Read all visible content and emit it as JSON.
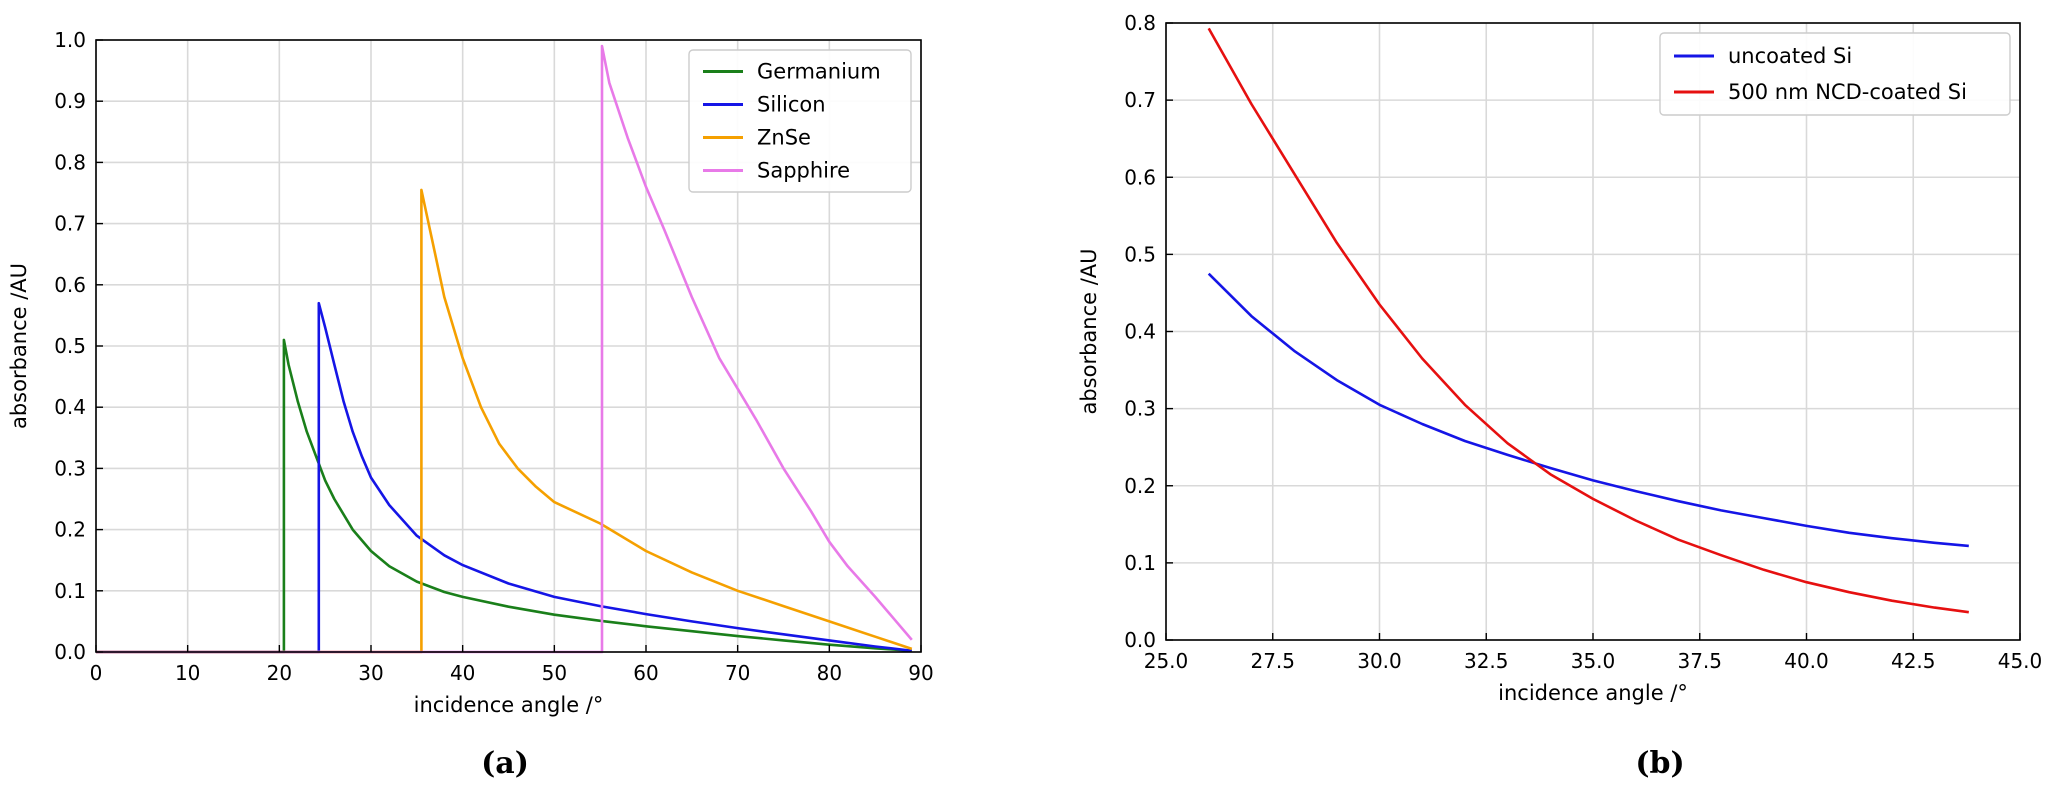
{
  "chart_data": [
    {
      "panel": "(a)",
      "type": "line",
      "xlabel": "incidence angle /°",
      "ylabel": "absorbance  /AU",
      "xlim": [
        0,
        90
      ],
      "ylim": [
        0,
        1.0
      ],
      "xticks": [
        "0",
        "10",
        "20",
        "30",
        "40",
        "50",
        "60",
        "70",
        "80",
        "90"
      ],
      "yticks": [
        "0.0",
        "0.1",
        "0.2",
        "0.3",
        "0.4",
        "0.5",
        "0.6",
        "0.7",
        "0.8",
        "0.9",
        "1.0"
      ],
      "grid": true,
      "legend_position": "top-right",
      "series": [
        {
          "name": "Germanium",
          "color": "#1a7f1a",
          "x": [
            0,
            20.5,
            20.5,
            21,
            22,
            23,
            24,
            25,
            26,
            28,
            30,
            32,
            35,
            38,
            40,
            45,
            50,
            55,
            60,
            65,
            70,
            75,
            80,
            85,
            89
          ],
          "y": [
            0,
            0,
            0.51,
            0.47,
            0.41,
            0.36,
            0.32,
            0.28,
            0.25,
            0.2,
            0.165,
            0.14,
            0.115,
            0.098,
            0.09,
            0.074,
            0.061,
            0.051,
            0.042,
            0.034,
            0.026,
            0.019,
            0.012,
            0.006,
            0.002
          ]
        },
        {
          "name": "Silicon",
          "color": "#1515e6",
          "x": [
            0,
            24.3,
            24.3,
            25,
            26,
            27,
            28,
            29,
            30,
            32,
            35,
            38,
            40,
            45,
            50,
            55,
            60,
            65,
            70,
            75,
            80,
            85,
            89
          ],
          "y": [
            0,
            0,
            0.57,
            0.53,
            0.47,
            0.41,
            0.36,
            0.32,
            0.285,
            0.24,
            0.19,
            0.158,
            0.142,
            0.112,
            0.09,
            0.075,
            0.062,
            0.05,
            0.039,
            0.029,
            0.019,
            0.009,
            0.002
          ]
        },
        {
          "name": "ZnSe",
          "color": "#f5a000",
          "x": [
            0,
            35.5,
            35.5,
            36,
            37,
            38,
            40,
            42,
            44,
            46,
            48,
            50,
            55,
            60,
            65,
            70,
            75,
            80,
            85,
            89
          ],
          "y": [
            0,
            0,
            0.755,
            0.72,
            0.65,
            0.58,
            0.48,
            0.4,
            0.34,
            0.3,
            0.27,
            0.245,
            0.21,
            0.165,
            0.13,
            0.1,
            0.075,
            0.05,
            0.025,
            0.005
          ]
        },
        {
          "name": "Sapphire",
          "color": "#e87ae8",
          "x": [
            0,
            55.2,
            55.2,
            56,
            58,
            60,
            62,
            65,
            68,
            70,
            72,
            75,
            78,
            80,
            82,
            85,
            87,
            89
          ],
          "y": [
            0,
            0,
            0.99,
            0.93,
            0.84,
            0.76,
            0.69,
            0.58,
            0.48,
            0.43,
            0.38,
            0.3,
            0.23,
            0.18,
            0.14,
            0.09,
            0.055,
            0.02
          ]
        }
      ]
    },
    {
      "panel": "(b)",
      "type": "line",
      "xlabel": "incidence angle /°",
      "ylabel": "absorbance  /AU",
      "xlim": [
        25.0,
        45.0
      ],
      "ylim": [
        0,
        0.8
      ],
      "xticks": [
        "25.0",
        "27.5",
        "30.0",
        "32.5",
        "35.0",
        "37.5",
        "40.0",
        "42.5",
        "45.0"
      ],
      "yticks": [
        "0.0",
        "0.1",
        "0.2",
        "0.3",
        "0.4",
        "0.5",
        "0.6",
        "0.7",
        "0.8"
      ],
      "grid": true,
      "legend_position": "top-right",
      "series": [
        {
          "name": "uncoated Si",
          "color": "#1515e6",
          "x": [
            26,
            27,
            28,
            29,
            30,
            31,
            32,
            33,
            34,
            35,
            36,
            37,
            38,
            39,
            40,
            41,
            42,
            43,
            43.8
          ],
          "y": [
            0.475,
            0.42,
            0.375,
            0.337,
            0.305,
            0.28,
            0.258,
            0.24,
            0.223,
            0.207,
            0.193,
            0.18,
            0.168,
            0.158,
            0.148,
            0.139,
            0.132,
            0.126,
            0.122
          ]
        },
        {
          "name": "500 nm NCD-coated Si",
          "color": "#e61010",
          "x": [
            26,
            27,
            28,
            29,
            30,
            31,
            32,
            33,
            34,
            35,
            36,
            37,
            38,
            39,
            40,
            41,
            42,
            43,
            43.8
          ],
          "y": [
            0.793,
            0.695,
            0.605,
            0.515,
            0.435,
            0.365,
            0.305,
            0.255,
            0.215,
            0.183,
            0.155,
            0.13,
            0.11,
            0.091,
            0.075,
            0.062,
            0.051,
            0.042,
            0.036
          ]
        }
      ]
    }
  ]
}
